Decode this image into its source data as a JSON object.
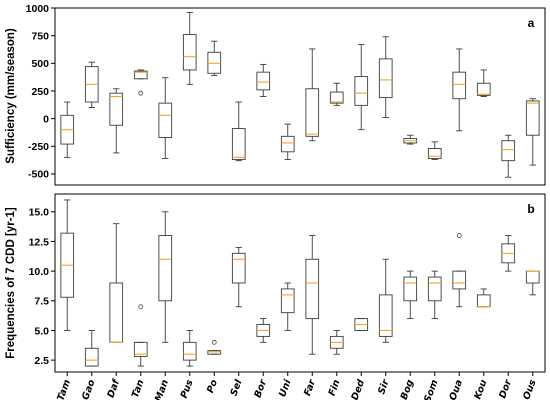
{
  "chart_data": [
    {
      "type": "box",
      "panel_label": "a",
      "ylabel": "Sufficiency (mm/season)",
      "ylim": [
        -600,
        1000
      ],
      "yticks": [
        "-500",
        "-250",
        "0",
        "250",
        "500",
        "750",
        "1000"
      ],
      "categories": [
        "Tam",
        "Gao",
        "Daf",
        "Tan",
        "Man",
        "Pus",
        "Po",
        "Sel",
        "Bor",
        "Uni",
        "Far",
        "Fin",
        "Ded",
        "Sir",
        "Bog",
        "Som",
        "Oua",
        "Kou",
        "Dor",
        "Ous"
      ],
      "stats": [
        {
          "min": -350,
          "q1": -230,
          "median": -100,
          "q3": 30,
          "max": 150,
          "fliers": []
        },
        {
          "min": 100,
          "q1": 150,
          "median": 310,
          "q3": 470,
          "max": 510,
          "fliers": []
        },
        {
          "min": -310,
          "q1": -60,
          "median": 200,
          "q3": 230,
          "max": 270,
          "fliers": []
        },
        {
          "min": 360,
          "q1": 360,
          "median": 420,
          "q3": 430,
          "max": 440,
          "fliers": [
            230
          ]
        },
        {
          "min": -360,
          "q1": -170,
          "median": 30,
          "q3": 140,
          "max": 370,
          "fliers": []
        },
        {
          "min": 310,
          "q1": 440,
          "median": 560,
          "q3": 760,
          "max": 960,
          "fliers": []
        },
        {
          "min": 390,
          "q1": 410,
          "median": 500,
          "q3": 600,
          "max": 700,
          "fliers": []
        },
        {
          "min": -380,
          "q1": -370,
          "median": -350,
          "q3": -90,
          "max": 150,
          "fliers": []
        },
        {
          "min": 200,
          "q1": 260,
          "median": 330,
          "q3": 420,
          "max": 490,
          "fliers": []
        },
        {
          "min": -370,
          "q1": -300,
          "median": -220,
          "q3": -160,
          "max": -50,
          "fliers": []
        },
        {
          "min": -200,
          "q1": -160,
          "median": -140,
          "q3": 270,
          "max": 630,
          "fliers": []
        },
        {
          "min": 120,
          "q1": 140,
          "median": 150,
          "q3": 240,
          "max": 320,
          "fliers": []
        },
        {
          "min": -100,
          "q1": 120,
          "median": 230,
          "q3": 380,
          "max": 670,
          "fliers": []
        },
        {
          "min": 10,
          "q1": 190,
          "median": 350,
          "q3": 540,
          "max": 740,
          "fliers": []
        },
        {
          "min": -230,
          "q1": -220,
          "median": -200,
          "q3": -180,
          "max": -150,
          "fliers": []
        },
        {
          "min": -370,
          "q1": -360,
          "median": -340,
          "q3": -270,
          "max": -210,
          "fliers": []
        },
        {
          "min": -110,
          "q1": 180,
          "median": 310,
          "q3": 420,
          "max": 630,
          "fliers": []
        },
        {
          "min": 200,
          "q1": 210,
          "median": 220,
          "q3": 320,
          "max": 440,
          "fliers": []
        },
        {
          "min": -530,
          "q1": -380,
          "median": -280,
          "q3": -200,
          "max": -150,
          "fliers": []
        },
        {
          "min": -420,
          "q1": -150,
          "median": 140,
          "q3": 160,
          "max": 180,
          "fliers": []
        }
      ]
    },
    {
      "type": "box",
      "panel_label": "b",
      "ylabel": "Frequencies of 7 CDD [yr-1]",
      "ylim": [
        1.5,
        16.5
      ],
      "yticks": [
        "2.5",
        "5.0",
        "7.5",
        "10.0",
        "12.5",
        "15.0"
      ],
      "categories": [
        "Tam",
        "Gao",
        "Daf",
        "Tan",
        "Man",
        "Pus",
        "Po",
        "Sel",
        "Bor",
        "Uni",
        "Far",
        "Fin",
        "Ded",
        "Sir",
        "Bog",
        "Som",
        "Oua",
        "Kou",
        "Dor",
        "Ous"
      ],
      "stats": [
        {
          "min": 5,
          "q1": 7.8,
          "median": 10.5,
          "q3": 13.2,
          "max": 16,
          "fliers": []
        },
        {
          "min": 2,
          "q1": 2,
          "median": 2.5,
          "q3": 3.5,
          "max": 5,
          "fliers": []
        },
        {
          "min": 4,
          "q1": 4,
          "median": 4,
          "q3": 9,
          "max": 14,
          "fliers": []
        },
        {
          "min": 2,
          "q1": 2.8,
          "median": 3,
          "q3": 4,
          "max": 4,
          "fliers": [
            7
          ]
        },
        {
          "min": 4,
          "q1": 7.5,
          "median": 11,
          "q3": 13,
          "max": 15,
          "fliers": []
        },
        {
          "min": 2,
          "q1": 2.5,
          "median": 3,
          "q3": 4,
          "max": 5,
          "fliers": []
        },
        {
          "min": 3,
          "q1": 3,
          "median": 3.2,
          "q3": 3.3,
          "max": 3.3,
          "fliers": [
            4
          ]
        },
        {
          "min": 7,
          "q1": 9,
          "median": 11,
          "q3": 11.5,
          "max": 12,
          "fliers": []
        },
        {
          "min": 4,
          "q1": 4.5,
          "median": 5,
          "q3": 5.5,
          "max": 6,
          "fliers": []
        },
        {
          "min": 5,
          "q1": 6.5,
          "median": 8,
          "q3": 8.5,
          "max": 9,
          "fliers": []
        },
        {
          "min": 3,
          "q1": 6,
          "median": 9,
          "q3": 11,
          "max": 13,
          "fliers": []
        },
        {
          "min": 3,
          "q1": 3.5,
          "median": 4,
          "q3": 4.5,
          "max": 5,
          "fliers": []
        },
        {
          "min": 5,
          "q1": 5,
          "median": 5.5,
          "q3": 6,
          "max": 6,
          "fliers": []
        },
        {
          "min": 4,
          "q1": 4.5,
          "median": 5,
          "q3": 8,
          "max": 11,
          "fliers": []
        },
        {
          "min": 6,
          "q1": 7.5,
          "median": 9,
          "q3": 9.5,
          "max": 10,
          "fliers": []
        },
        {
          "min": 6,
          "q1": 7.5,
          "median": 9,
          "q3": 9.5,
          "max": 10,
          "fliers": []
        },
        {
          "min": 7,
          "q1": 8.5,
          "median": 9,
          "q3": 10,
          "max": 10,
          "fliers": [
            13
          ]
        },
        {
          "min": 7,
          "q1": 7,
          "median": 7,
          "q3": 8,
          "max": 8.5,
          "fliers": []
        },
        {
          "min": 10,
          "q1": 10.7,
          "median": 11.5,
          "q3": 12.3,
          "max": 13,
          "fliers": []
        },
        {
          "min": 8,
          "q1": 9,
          "median": 10,
          "q3": 10,
          "max": 10,
          "fliers": []
        }
      ]
    }
  ]
}
